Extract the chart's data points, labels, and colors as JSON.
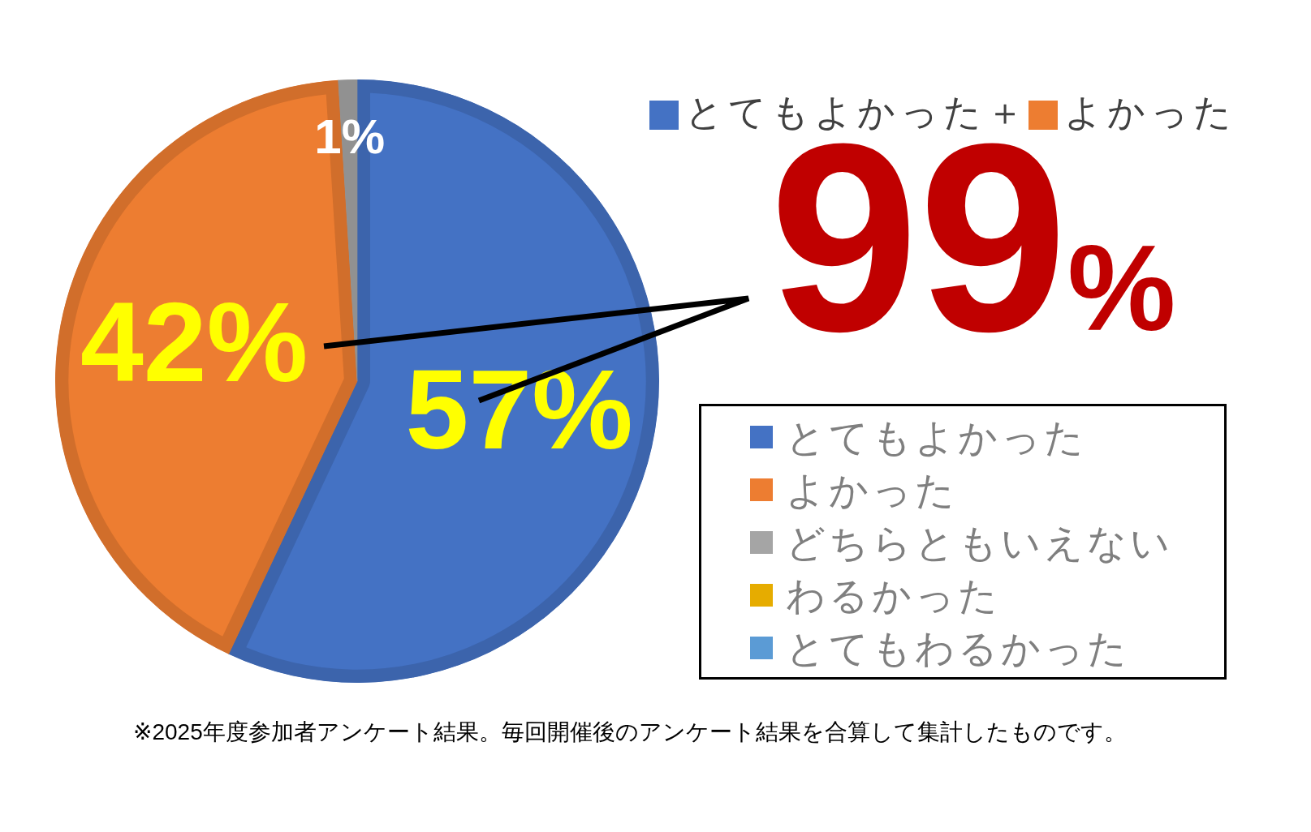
{
  "chart_data": {
    "type": "pie",
    "categories": [
      "とてもよかった",
      "よかった",
      "どちらともいえない",
      "わるかった",
      "とてもわるかった"
    ],
    "values": [
      57,
      42,
      1,
      0,
      0
    ],
    "colors": [
      "#4472c4",
      "#ed7d31",
      "#a5a5a5",
      "#e6ac00",
      "#5b9bd5"
    ],
    "value_labels": [
      "57%",
      "42%",
      "1%",
      null,
      null
    ],
    "legend": "right",
    "annotations": [
      "とてもよかった＋",
      "よかった",
      "99%",
      "※2025年度参加者アンケート結果。毎回開催後のアンケート結果を合算して集計したものです。"
    ]
  }
}
